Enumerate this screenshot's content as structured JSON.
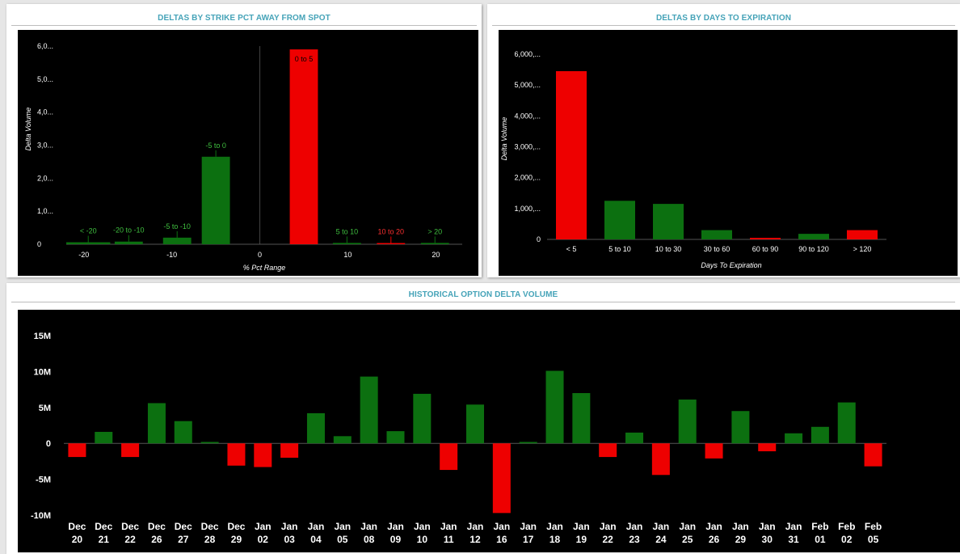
{
  "colors": {
    "accent": "#45a3b8",
    "positive": "#0c7010",
    "negative": "#ee0000",
    "background": "#000000"
  },
  "strike_panel": {
    "title": "DELTAS BY STRIKE PCT AWAY FROM SPOT"
  },
  "days_panel": {
    "title": "DELTAS BY DAYS TO EXPIRATION"
  },
  "history_panel": {
    "title": "HISTORICAL OPTION DELTA VOLUME"
  },
  "chart_data": [
    {
      "type": "bar",
      "title": "DELTAS BY STRIKE PCT AWAY FROM SPOT",
      "xlabel": "% Pct Range",
      "ylabel": "Delta Volume",
      "xlim": [
        -22,
        23
      ],
      "ylim": [
        0,
        6000
      ],
      "y_ticks": [
        0,
        1000,
        2000,
        3000,
        4000,
        5000,
        6000
      ],
      "y_tick_labels": [
        "0",
        "1,0...",
        "2,0...",
        "3,0...",
        "4,0...",
        "5,0...",
        "6,0..."
      ],
      "x_ticks": [
        -20,
        -10,
        0,
        10,
        20
      ],
      "x_tick_labels": [
        "-20",
        "-10",
        "0",
        "10",
        "20"
      ],
      "bars": [
        {
          "label": "< -20",
          "x0": -22,
          "x1": -17,
          "value": 60,
          "sign": "positive"
        },
        {
          "label": "-20 to -10",
          "x0": -16.5,
          "x1": -13.3,
          "value": 80,
          "sign": "positive"
        },
        {
          "label": "-5 to -10",
          "x0": -11,
          "x1": -7.8,
          "value": 200,
          "sign": "positive"
        },
        {
          "label": "-5 to 0",
          "x0": -6.6,
          "x1": -3.4,
          "value": 2650,
          "sign": "positive"
        },
        {
          "label": "0 to 5",
          "x0": 3.4,
          "x1": 6.6,
          "value": 5900,
          "sign": "negative"
        },
        {
          "label": "5 to 10",
          "x0": 8.3,
          "x1": 11.5,
          "value": 40,
          "sign": "positive"
        },
        {
          "label": "10 to 20",
          "x0": 13.3,
          "x1": 16.5,
          "value": 30,
          "sign": "negative"
        },
        {
          "label": "> 20",
          "x0": 18.3,
          "x1": 21.5,
          "value": 40,
          "sign": "positive"
        }
      ]
    },
    {
      "type": "bar",
      "title": "DELTAS BY DAYS TO EXPIRATION",
      "xlabel": "Days To Expiration",
      "ylabel": "Delta Volume",
      "ylim": [
        0,
        6000
      ],
      "y_ticks": [
        0,
        1000,
        2000,
        3000,
        4000,
        5000,
        6000
      ],
      "y_tick_labels": [
        "0",
        "1,000,...",
        "2,000,...",
        "3,000,...",
        "4,000,...",
        "5,000,...",
        "6,000,..."
      ],
      "categories": [
        "< 5",
        "5 to 10",
        "10 to 30",
        "30 to 60",
        "60 to 90",
        "90 to 120",
        "> 120"
      ],
      "values": [
        5450,
        1250,
        1150,
        300,
        50,
        180,
        300
      ],
      "signs": [
        "negative",
        "positive",
        "positive",
        "positive",
        "negative",
        "positive",
        "negative"
      ]
    },
    {
      "type": "bar",
      "title": "HISTORICAL OPTION DELTA VOLUME",
      "ylim": [
        -10,
        15
      ],
      "y_ticks": [
        -10,
        -5,
        0,
        5,
        10,
        15
      ],
      "y_tick_labels": [
        "-10M",
        "-5M",
        "0",
        "5M",
        "10M",
        "15M"
      ],
      "categories": [
        [
          "Dec",
          "20"
        ],
        [
          "Dec",
          "21"
        ],
        [
          "Dec",
          "22"
        ],
        [
          "Dec",
          "26"
        ],
        [
          "Dec",
          "27"
        ],
        [
          "Dec",
          "28"
        ],
        [
          "Dec",
          "29"
        ],
        [
          "Jan",
          "02"
        ],
        [
          "Jan",
          "03"
        ],
        [
          "Jan",
          "04"
        ],
        [
          "Jan",
          "05"
        ],
        [
          "Jan",
          "08"
        ],
        [
          "Jan",
          "09"
        ],
        [
          "Jan",
          "10"
        ],
        [
          "Jan",
          "11"
        ],
        [
          "Jan",
          "12"
        ],
        [
          "Jan",
          "16"
        ],
        [
          "Jan",
          "17"
        ],
        [
          "Jan",
          "18"
        ],
        [
          "Jan",
          "19"
        ],
        [
          "Jan",
          "22"
        ],
        [
          "Jan",
          "23"
        ],
        [
          "Jan",
          "24"
        ],
        [
          "Jan",
          "25"
        ],
        [
          "Jan",
          "26"
        ],
        [
          "Jan",
          "29"
        ],
        [
          "Jan",
          "30"
        ],
        [
          "Jan",
          "31"
        ],
        [
          "Feb",
          "01"
        ],
        [
          "Feb",
          "02"
        ],
        [
          "Feb",
          "05"
        ]
      ],
      "values": [
        -1.9,
        1.6,
        -1.9,
        5.6,
        3.1,
        0.2,
        -3.1,
        -3.3,
        -2.0,
        4.2,
        1.0,
        9.3,
        1.7,
        6.9,
        -3.7,
        5.4,
        -9.7,
        0.2,
        10.1,
        7.0,
        -1.9,
        1.5,
        -4.4,
        6.1,
        -2.1,
        4.5,
        -1.1,
        1.4,
        2.3,
        5.7,
        -3.2
      ]
    }
  ]
}
